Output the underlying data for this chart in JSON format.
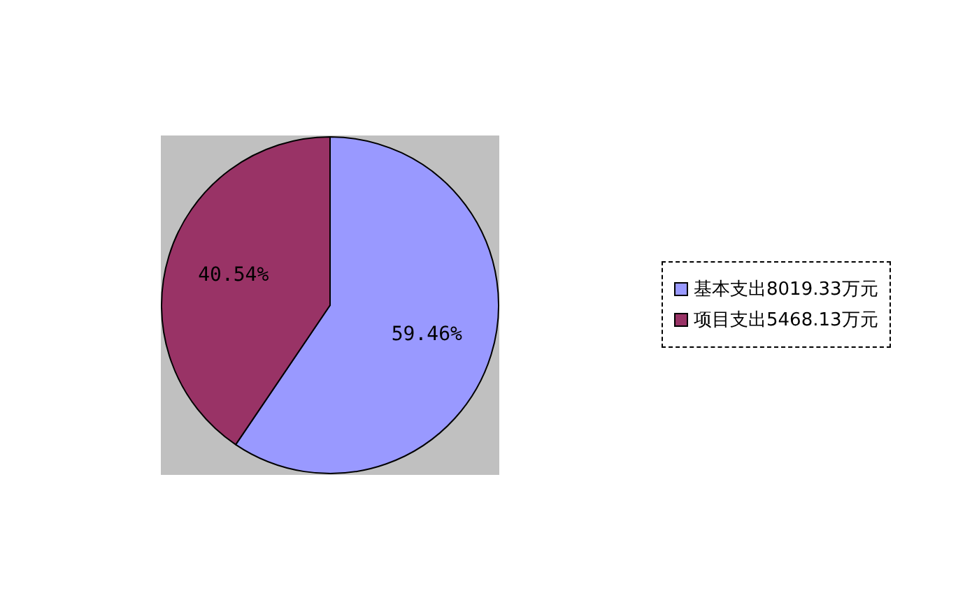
{
  "chart_data": {
    "type": "pie",
    "categories": [
      "基本支出8019.33万元",
      "项目支出5468.13万元"
    ],
    "values": [
      59.46,
      40.54
    ],
    "colors": [
      "#9999ff",
      "#993366"
    ],
    "value_labels": [
      "59.46%",
      "40.54%"
    ],
    "legend": "right"
  }
}
